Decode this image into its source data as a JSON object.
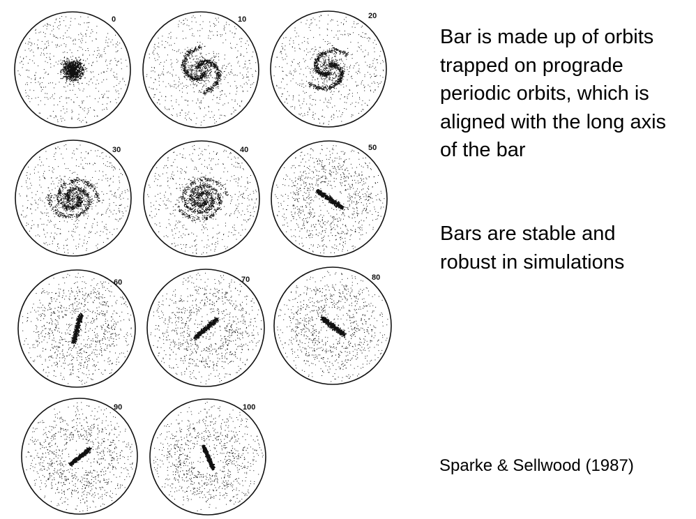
{
  "figure": {
    "panels": [
      {
        "label": "0",
        "morphology": "diffuse"
      },
      {
        "label": "10",
        "morphology": "ring"
      },
      {
        "label": "20",
        "morphology": "ring"
      },
      {
        "label": "30",
        "morphology": "spiral"
      },
      {
        "label": "40",
        "morphology": "s-spiral"
      },
      {
        "label": "50",
        "morphology": "bar"
      },
      {
        "label": "60",
        "morphology": "bar"
      },
      {
        "label": "70",
        "morphology": "bar"
      },
      {
        "label": "80",
        "morphology": "bar"
      },
      {
        "label": "90",
        "morphology": "bar"
      },
      {
        "label": "100",
        "morphology": "bar"
      }
    ]
  },
  "text": {
    "bullet_1": "Bar is made up of orbits trapped on prograde periodic orbits, which is aligned with the long axis of the bar",
    "bullet_2": "Bars are stable and robust in simulations",
    "citation": "Sparke & Sellwood (1987)"
  }
}
